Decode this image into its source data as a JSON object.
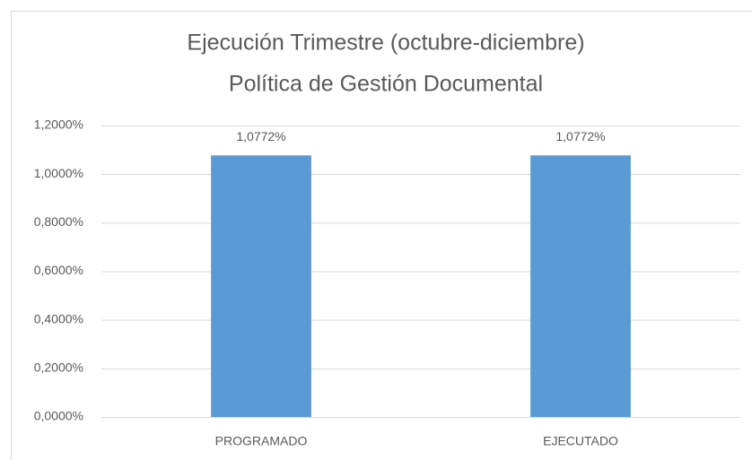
{
  "chart_data": {
    "type": "bar",
    "title": [
      "Ejecución Trimestre (octubre-diciembre)",
      "Política de Gestión Documental"
    ],
    "categories": [
      "PROGRAMADO",
      "EJECUTADO"
    ],
    "values": [
      1.0772,
      1.0772
    ],
    "value_labels": [
      "1,0772%",
      "1,0772%"
    ],
    "color": "#5b9bd5",
    "ylim": [
      0,
      1.2
    ],
    "yticks": [
      {
        "value": 0,
        "label": "0,0000%"
      },
      {
        "value": 0.2,
        "label": "0,2000%"
      },
      {
        "value": 0.4,
        "label": "0,4000%"
      },
      {
        "value": 0.6,
        "label": "0,6000%"
      },
      {
        "value": 0.8,
        "label": "0,8000%"
      },
      {
        "value": 1.0,
        "label": "1,0000%"
      },
      {
        "value": 1.2,
        "label": "1,2000%"
      }
    ],
    "grid": true
  }
}
